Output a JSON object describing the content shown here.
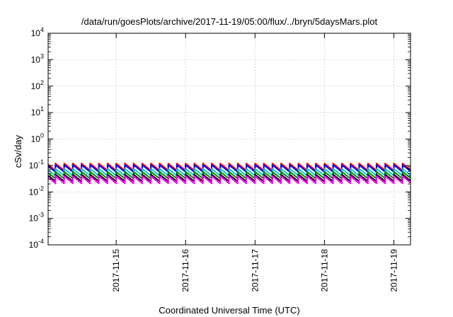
{
  "chart_data": {
    "type": "line",
    "title": "/data/run/goesPlots/archive/2017-11-19/05:00/flux/../bryn/5daysMars.plot",
    "xlabel": "Coordinated Universal Time (UTC)",
    "ylabel": "cSv/day",
    "yscale": "log",
    "ylim": [
      0.0001,
      10000
    ],
    "xlim": [
      -0.98,
      4.24
    ],
    "grid": true,
    "y_ticks": [
      {
        "base": "10",
        "exp": "4",
        "value": 10000
      },
      {
        "base": "10",
        "exp": "3",
        "value": 1000
      },
      {
        "base": "10",
        "exp": "2",
        "value": 100
      },
      {
        "base": "10",
        "exp": "1",
        "value": 10
      },
      {
        "base": "10",
        "exp": "0",
        "value": 1
      },
      {
        "base": "10",
        "exp": "-1",
        "value": 0.1
      },
      {
        "base": "10",
        "exp": "-2",
        "value": 0.01
      },
      {
        "base": "10",
        "exp": "-3",
        "value": 0.001
      },
      {
        "base": "10",
        "exp": "-4",
        "value": 0.0001
      }
    ],
    "x_ticks": [
      {
        "label": "2017-11-15",
        "day": 0
      },
      {
        "label": "2017-11-16",
        "day": 1
      },
      {
        "label": "2017-11-17",
        "day": 2
      },
      {
        "label": "2017-11-18",
        "day": 3
      },
      {
        "label": "2017-11-19",
        "day": 4
      }
    ],
    "sawtooth_period_days": 0.125,
    "series": [
      {
        "color": "#ff0000",
        "peak": 0.12,
        "trough": 0.065
      },
      {
        "color": "#0000ff",
        "peak": 0.105,
        "trough": 0.057
      },
      {
        "color": "#00c8c8",
        "peak": 0.075,
        "trough": 0.041
      },
      {
        "color": "#008000",
        "peak": 0.058,
        "trough": 0.032
      },
      {
        "color": "#000000",
        "peak": 0.046,
        "trough": 0.025
      },
      {
        "color": "#ff00ff",
        "peak": 0.04,
        "trough": 0.021
      }
    ]
  }
}
